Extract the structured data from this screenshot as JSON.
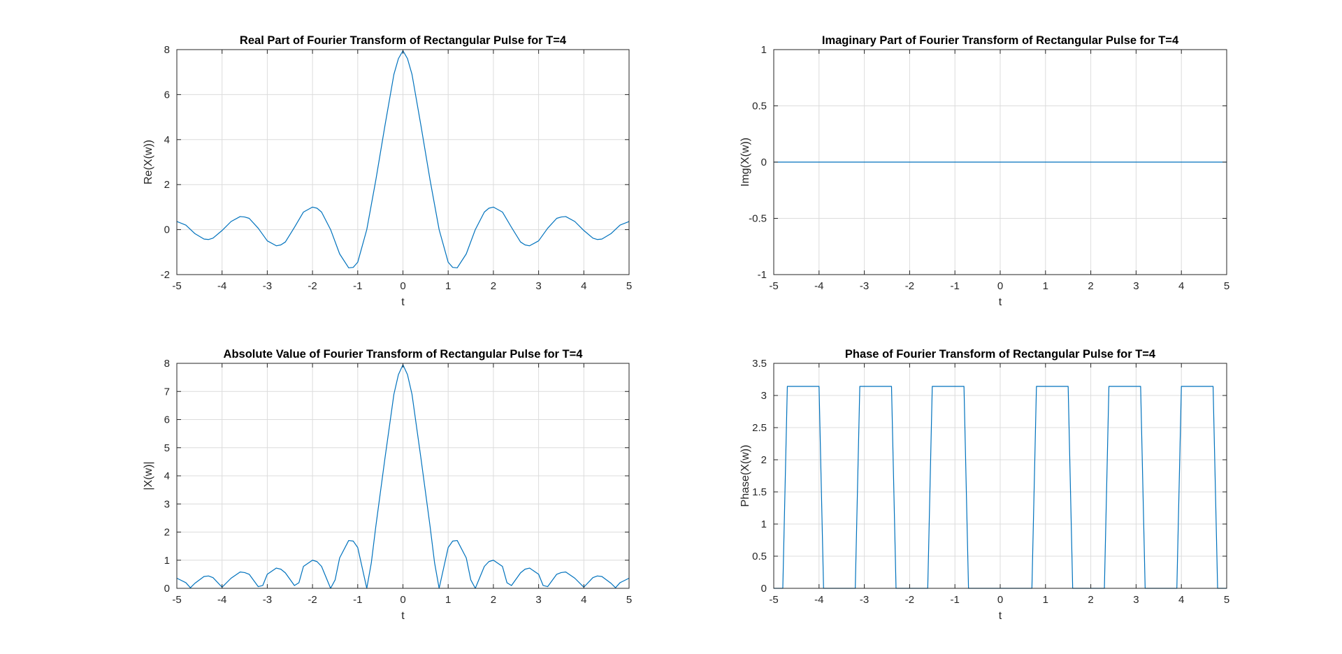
{
  "figure": {
    "line_color": "#0072bd",
    "grid": true
  },
  "chart_data": [
    {
      "type": "line",
      "title": "Real Part of Fourier Transform of Rectangular Pulse for T=4",
      "xlabel": "t",
      "ylabel": "Re(X(w))",
      "xlim": [
        -5,
        5
      ],
      "ylim": [
        -2,
        8
      ],
      "xticks": [
        -5,
        -4,
        -3,
        -2,
        -1,
        0,
        1,
        2,
        3,
        4,
        5
      ],
      "yticks": [
        -2,
        0,
        2,
        4,
        6,
        8
      ],
      "xtick_labels": [
        "-5",
        "-4",
        "-3",
        "-2",
        "-1",
        "0",
        "1",
        "2",
        "3",
        "4",
        "5"
      ],
      "ytick_labels": [
        "-2",
        "0",
        "2",
        "4",
        "6",
        "8"
      ],
      "x": [
        -5,
        -4.8,
        -4.6,
        -4.4,
        -4.3,
        -4.2,
        -4.0,
        -3.8,
        -3.6,
        -3.5,
        -3.4,
        -3.2,
        -3.0,
        -2.8,
        -2.7,
        -2.6,
        -2.4,
        -2.2,
        -2.0,
        -1.9,
        -1.8,
        -1.6,
        -1.4,
        -1.2,
        -1.1,
        -1.0,
        -0.8,
        -0.6,
        -0.4,
        -0.2,
        -0.1,
        0,
        0.1,
        0.2,
        0.4,
        0.6,
        0.8,
        1.0,
        1.1,
        1.2,
        1.4,
        1.6,
        1.8,
        1.9,
        2.0,
        2.2,
        2.4,
        2.6,
        2.7,
        2.8,
        3.0,
        3.2,
        3.4,
        3.5,
        3.6,
        3.8,
        4.0,
        4.2,
        4.3,
        4.4,
        4.6,
        4.8,
        5.0
      ],
      "y": [
        0.36,
        0.2,
        -0.18,
        -0.42,
        -0.44,
        -0.38,
        -0.04,
        0.36,
        0.58,
        0.56,
        0.5,
        0.06,
        -0.5,
        -0.72,
        -0.68,
        -0.55,
        0.1,
        0.78,
        1.0,
        0.95,
        0.78,
        0.0,
        -1.08,
        -1.7,
        -1.68,
        -1.45,
        0.0,
        2.2,
        4.6,
        6.9,
        7.6,
        7.95,
        7.6,
        6.9,
        4.6,
        2.2,
        0.0,
        -1.45,
        -1.68,
        -1.7,
        -1.08,
        0.0,
        0.78,
        0.95,
        1.0,
        0.78,
        0.1,
        -0.55,
        -0.68,
        -0.72,
        -0.5,
        0.06,
        0.5,
        0.56,
        0.58,
        0.36,
        -0.04,
        -0.38,
        -0.44,
        -0.42,
        -0.18,
        0.2,
        0.36
      ]
    },
    {
      "type": "line",
      "title": "Imaginary Part of Fourier Transform of Rectangular Pulse for T=4",
      "xlabel": "t",
      "ylabel": "Img(X(w))",
      "xlim": [
        -5,
        5
      ],
      "ylim": [
        -1,
        1
      ],
      "xticks": [
        -5,
        -4,
        -3,
        -2,
        -1,
        0,
        1,
        2,
        3,
        4,
        5
      ],
      "yticks": [
        -1,
        -0.5,
        0,
        0.5,
        1
      ],
      "xtick_labels": [
        "-5",
        "-4",
        "-3",
        "-2",
        "-1",
        "0",
        "1",
        "2",
        "3",
        "4",
        "5"
      ],
      "ytick_labels": [
        "-1",
        "-0.5",
        "0",
        "0.5",
        "1"
      ],
      "x": [
        -5,
        5
      ],
      "y": [
        0,
        0
      ]
    },
    {
      "type": "line",
      "title": "Absolute Value of Fourier Transform of Rectangular Pulse for T=4",
      "xlabel": "t",
      "ylabel": "|X(w)|",
      "xlim": [
        -5,
        5
      ],
      "ylim": [
        0,
        8
      ],
      "xticks": [
        -5,
        -4,
        -3,
        -2,
        -1,
        0,
        1,
        2,
        3,
        4,
        5
      ],
      "yticks": [
        0,
        1,
        2,
        3,
        4,
        5,
        6,
        7,
        8
      ],
      "xtick_labels": [
        "-5",
        "-4",
        "-3",
        "-2",
        "-1",
        "0",
        "1",
        "2",
        "3",
        "4",
        "5"
      ],
      "ytick_labels": [
        "0",
        "1",
        "2",
        "3",
        "4",
        "5",
        "6",
        "7",
        "8"
      ],
      "x": [
        -5,
        -4.8,
        -4.7,
        -4.6,
        -4.4,
        -4.3,
        -4.2,
        -4.0,
        -3.8,
        -3.6,
        -3.5,
        -3.4,
        -3.2,
        -3.1,
        -3.0,
        -2.8,
        -2.7,
        -2.6,
        -2.4,
        -2.3,
        -2.2,
        -2.0,
        -1.9,
        -1.8,
        -1.6,
        -1.5,
        -1.4,
        -1.2,
        -1.1,
        -1.0,
        -0.8,
        -0.7,
        -0.6,
        -0.4,
        -0.2,
        -0.1,
        0,
        0.1,
        0.2,
        0.4,
        0.6,
        0.7,
        0.8,
        1.0,
        1.1,
        1.2,
        1.4,
        1.5,
        1.6,
        1.8,
        1.9,
        2.0,
        2.2,
        2.3,
        2.4,
        2.6,
        2.7,
        2.8,
        3.0,
        3.1,
        3.2,
        3.4,
        3.5,
        3.6,
        3.8,
        4.0,
        4.2,
        4.3,
        4.4,
        4.6,
        4.7,
        4.8,
        5.0
      ],
      "y": [
        0.36,
        0.2,
        0.02,
        0.18,
        0.42,
        0.44,
        0.38,
        0.04,
        0.36,
        0.58,
        0.56,
        0.5,
        0.06,
        0.1,
        0.5,
        0.72,
        0.68,
        0.55,
        0.1,
        0.2,
        0.78,
        1.0,
        0.95,
        0.78,
        0.0,
        0.3,
        1.08,
        1.7,
        1.68,
        1.45,
        0.0,
        0.9,
        2.2,
        4.6,
        6.9,
        7.6,
        7.95,
        7.6,
        6.9,
        4.6,
        2.2,
        0.9,
        0.0,
        1.45,
        1.68,
        1.7,
        1.08,
        0.3,
        0.0,
        0.78,
        0.95,
        1.0,
        0.78,
        0.2,
        0.1,
        0.55,
        0.68,
        0.72,
        0.5,
        0.1,
        0.06,
        0.5,
        0.56,
        0.58,
        0.36,
        0.04,
        0.38,
        0.44,
        0.42,
        0.18,
        0.02,
        0.2,
        0.36
      ]
    },
    {
      "type": "line",
      "title": "Phase of Fourier Transform of Rectangular Pulse for T=4",
      "xlabel": "t",
      "ylabel": "Phase(X(w))",
      "xlim": [
        -5,
        5
      ],
      "ylim": [
        0,
        3.5
      ],
      "xticks": [
        -5,
        -4,
        -3,
        -2,
        -1,
        0,
        1,
        2,
        3,
        4,
        5
      ],
      "yticks": [
        0,
        0.5,
        1,
        1.5,
        2,
        2.5,
        3,
        3.5
      ],
      "xtick_labels": [
        "-5",
        "-4",
        "-3",
        "-2",
        "-1",
        "0",
        "1",
        "2",
        "3",
        "4",
        "5"
      ],
      "ytick_labels": [
        "0",
        "0.5",
        "1",
        "1.5",
        "2",
        "2.5",
        "3",
        "3.5"
      ],
      "x": [
        -5,
        -4.8,
        -4.7,
        -4.0,
        -3.9,
        -3.2,
        -3.1,
        -2.4,
        -2.3,
        -1.6,
        -1.5,
        -0.8,
        -0.7,
        0.7,
        0.8,
        1.5,
        1.6,
        2.3,
        2.4,
        3.1,
        3.2,
        3.9,
        4.0,
        4.7,
        4.8,
        5.0
      ],
      "y": [
        0,
        0,
        3.1416,
        3.1416,
        0,
        0,
        3.1416,
        3.1416,
        0,
        0,
        3.1416,
        3.1416,
        0,
        0,
        3.1416,
        3.1416,
        0,
        0,
        3.1416,
        3.1416,
        0,
        0,
        3.1416,
        3.1416,
        0,
        0
      ]
    }
  ]
}
